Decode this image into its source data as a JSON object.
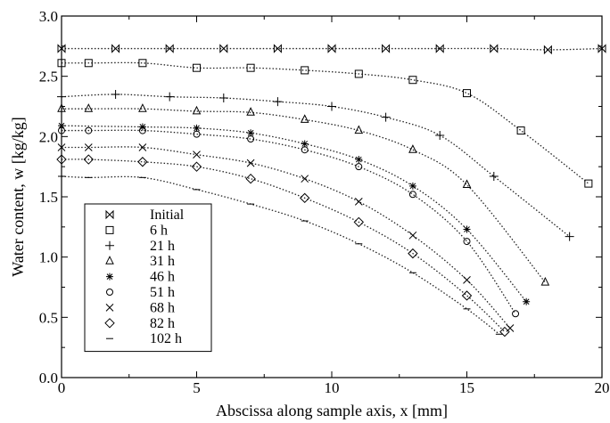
{
  "chart_data": {
    "type": "scatter",
    "title": "",
    "xlabel": "Abscissa along sample axis, x [mm]",
    "ylabel": "Water content, w [kg/kg]",
    "xlim": [
      0,
      20
    ],
    "ylim": [
      0.0,
      3.0
    ],
    "x_ticks": [
      "0",
      "5",
      "10",
      "15",
      "20"
    ],
    "y_ticks": [
      "0.0",
      "0.5",
      "1.0",
      "1.5",
      "2.0",
      "2.5",
      "3.0"
    ],
    "grid": false,
    "legend_position": "bottom-left",
    "fit_lines": "dotted curves through each series",
    "series": [
      {
        "name": "Initial",
        "marker": "bowtie",
        "x": [
          0,
          2,
          4,
          6,
          8,
          10,
          12,
          14,
          16,
          18,
          20
        ],
        "y": [
          2.73,
          2.73,
          2.73,
          2.73,
          2.73,
          2.73,
          2.73,
          2.73,
          2.73,
          2.72,
          2.73
        ]
      },
      {
        "name": "6 h",
        "marker": "square",
        "x": [
          0,
          1,
          3,
          5,
          7,
          9,
          11,
          13,
          15,
          17,
          19.5
        ],
        "y": [
          2.61,
          2.61,
          2.61,
          2.57,
          2.57,
          2.55,
          2.52,
          2.47,
          2.36,
          2.05,
          1.61
        ]
      },
      {
        "name": "21 h",
        "marker": "plus",
        "x": [
          0,
          2,
          4,
          6,
          8,
          10,
          12,
          14,
          16,
          18.8
        ],
        "y": [
          2.33,
          2.35,
          2.33,
          2.32,
          2.29,
          2.25,
          2.16,
          2.01,
          1.67,
          1.17
        ]
      },
      {
        "name": "31 h",
        "marker": "triangle",
        "x": [
          0,
          1,
          3,
          5,
          7,
          9,
          11,
          13,
          15,
          17.9
        ],
        "y": [
          2.23,
          2.23,
          2.23,
          2.21,
          2.2,
          2.14,
          2.05,
          1.89,
          1.6,
          0.79
        ]
      },
      {
        "name": "46 h",
        "marker": "asterisk",
        "x": [
          0,
          3,
          5,
          7,
          9,
          11,
          13,
          15,
          17.2
        ],
        "y": [
          2.09,
          2.08,
          2.07,
          2.03,
          1.94,
          1.81,
          1.59,
          1.23,
          0.63
        ]
      },
      {
        "name": "51 h",
        "marker": "circle",
        "x": [
          0,
          1,
          3,
          5,
          7,
          9,
          11,
          13,
          15,
          16.8
        ],
        "y": [
          2.05,
          2.05,
          2.05,
          2.02,
          1.98,
          1.89,
          1.75,
          1.52,
          1.13,
          0.53
        ]
      },
      {
        "name": "68 h",
        "marker": "cross",
        "x": [
          0,
          1,
          3,
          5,
          7,
          9,
          11,
          13,
          15,
          16.6
        ],
        "y": [
          1.91,
          1.91,
          1.91,
          1.85,
          1.78,
          1.65,
          1.46,
          1.18,
          0.81,
          0.41
        ]
      },
      {
        "name": "82 h",
        "marker": "diamond",
        "x": [
          0,
          1,
          3,
          5,
          7,
          9,
          11,
          13,
          15,
          16.4
        ],
        "y": [
          1.81,
          1.81,
          1.79,
          1.75,
          1.65,
          1.49,
          1.29,
          1.03,
          0.68,
          0.38
        ]
      },
      {
        "name": "102 h",
        "marker": "dash",
        "x": [
          0,
          1,
          3,
          5,
          7,
          9,
          11,
          13,
          15,
          16.2
        ],
        "y": [
          1.67,
          1.66,
          1.66,
          1.56,
          1.44,
          1.3,
          1.11,
          0.87,
          0.57,
          0.36
        ]
      }
    ]
  }
}
